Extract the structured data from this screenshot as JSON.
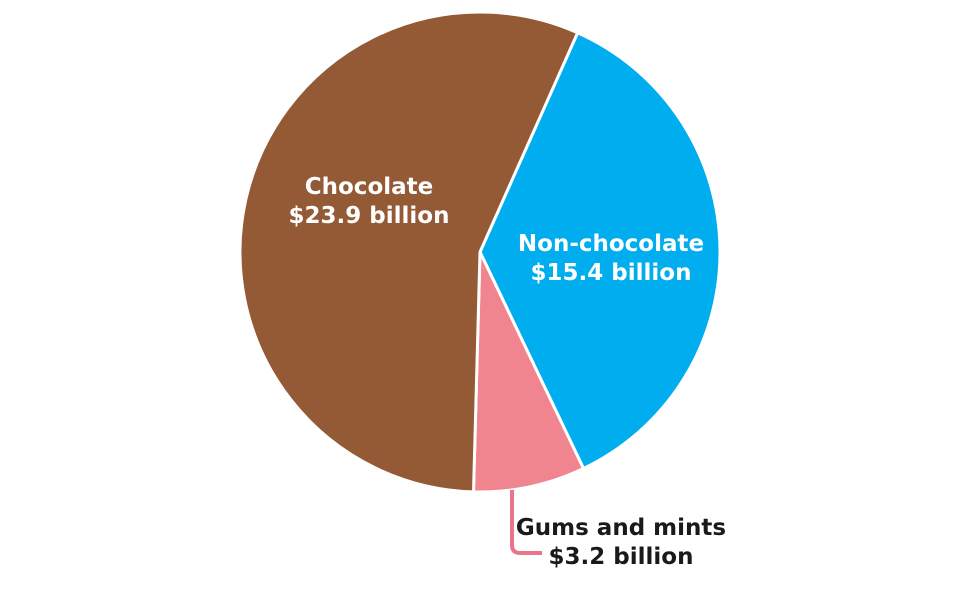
{
  "chart_data": {
    "type": "pie",
    "title": "",
    "unit": "billion",
    "slices": [
      {
        "name": "Chocolate",
        "value": 23.9,
        "value_label": "$23.9 billion",
        "color": "#935a35",
        "label_color": "#ffffff"
      },
      {
        "name": "Non-chocolate",
        "value": 15.4,
        "value_label": "$15.4 billion",
        "color": "#00aeef",
        "label_color": "#ffffff"
      },
      {
        "name": "Gums and mints",
        "value": 3.2,
        "value_label": "$3.2 billion",
        "color": "#f08590",
        "label_color": "#1a1a1a",
        "leader_line_color": "#e8758a"
      }
    ]
  }
}
